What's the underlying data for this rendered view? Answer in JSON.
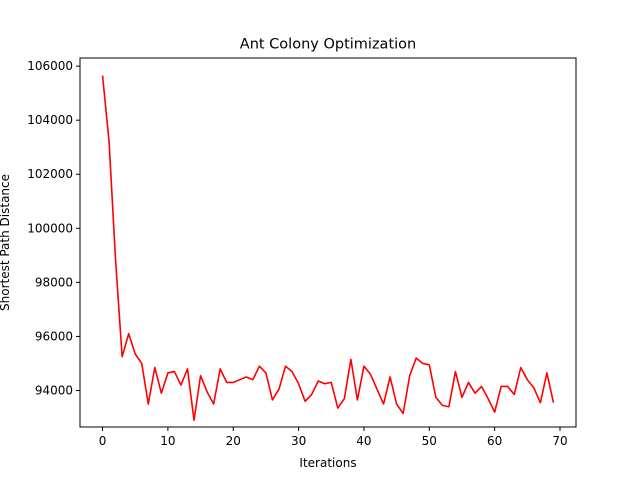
{
  "chart_data": {
    "type": "line",
    "title": "Ant Colony Optimization",
    "xlabel": "Iterations",
    "ylabel": "Shortest Path Distance",
    "xlim": [
      -3.45,
      72.45
    ],
    "ylim": [
      92650,
      106300
    ],
    "xticks": [
      0,
      10,
      20,
      30,
      40,
      50,
      60,
      70
    ],
    "yticks": [
      94000,
      96000,
      98000,
      100000,
      102000,
      104000,
      106000
    ],
    "grid": false,
    "legend": "none",
    "colors": {
      "line": "#ff0000",
      "axes": "#000000",
      "background": "#ffffff"
    },
    "series": [
      {
        "x": [
          0,
          1,
          2,
          3,
          4,
          5,
          6,
          7,
          8,
          9,
          10,
          11,
          12,
          13,
          14,
          15,
          16,
          17,
          18,
          19,
          20,
          21,
          22,
          23,
          24,
          25,
          26,
          27,
          28,
          29,
          30,
          31,
          32,
          33,
          34,
          35,
          36,
          37,
          38,
          39,
          40,
          41,
          42,
          43,
          44,
          45,
          46,
          47,
          48,
          49,
          50,
          51,
          52,
          53,
          54,
          55,
          56,
          57,
          58,
          59,
          60,
          61,
          62,
          63,
          64,
          65,
          66,
          67,
          68,
          69
        ],
        "values": [
          105650,
          103200,
          98800,
          95250,
          96100,
          95350,
          95000,
          93500,
          94850,
          93900,
          94650,
          94700,
          94200,
          94800,
          92900,
          94550,
          93950,
          93500,
          94800,
          94300,
          94300,
          94400,
          94500,
          94400,
          94900,
          94650,
          93650,
          94050,
          94900,
          94700,
          94250,
          93600,
          93850,
          94350,
          94250,
          94300,
          93350,
          93700,
          95150,
          93650,
          94900,
          94600,
          94050,
          93500,
          94500,
          93500,
          93150,
          94550,
          95200,
          95000,
          94950,
          93750,
          93450,
          93400,
          94700,
          93750,
          94300,
          93900,
          94150,
          93700,
          93200,
          94150,
          94150,
          93850,
          94850,
          94400,
          94100,
          93550,
          94650,
          93550
        ]
      }
    ]
  }
}
